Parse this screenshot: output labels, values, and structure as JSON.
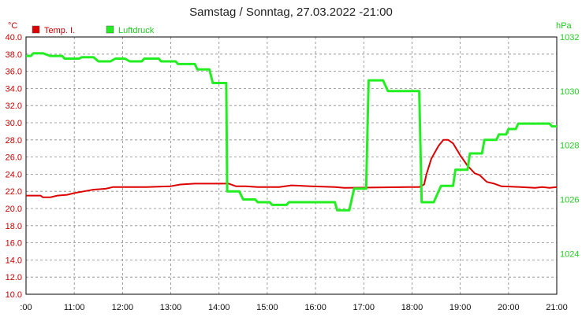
{
  "chart_data": {
    "type": "line",
    "title": "Samstag / Sonntag, 27.03.2022  -21:00",
    "x_ticks": [
      ":00",
      "11:00",
      "12:00",
      "13:00",
      "14:00",
      "15:00",
      "16:00",
      "17:00",
      "18:00",
      "19:00",
      "20:00",
      "21:00"
    ],
    "x_range": [
      10.0,
      21.0
    ],
    "grid": true,
    "legend_position": "top-left",
    "y_left": {
      "unit": "°C",
      "range": [
        10.0,
        40.0
      ],
      "ticks": [
        "40.0",
        "38.0",
        "36.0",
        "34.0",
        "32.0",
        "30.0",
        "28.0",
        "26.0",
        "24.0",
        "22.0",
        "20.0",
        "18.0",
        "16.0",
        "14.0",
        "12.0",
        "10.0"
      ],
      "color": "#cc0000"
    },
    "y_right": {
      "unit": "hPa",
      "range": [
        1022.5,
        1032.0
      ],
      "ticks": [
        "1032",
        "1030",
        "1028",
        "1026",
        "1024"
      ],
      "color": "#22cc22"
    },
    "series": [
      {
        "name": "Temp. I.",
        "axis": "left",
        "color": "#dd0000",
        "points": [
          [
            10.0,
            21.5
          ],
          [
            10.3,
            21.5
          ],
          [
            10.35,
            21.3
          ],
          [
            10.5,
            21.3
          ],
          [
            10.65,
            21.5
          ],
          [
            10.85,
            21.6
          ],
          [
            11.0,
            21.8
          ],
          [
            11.2,
            22.0
          ],
          [
            11.4,
            22.2
          ],
          [
            11.65,
            22.3
          ],
          [
            11.8,
            22.5
          ],
          [
            12.5,
            22.5
          ],
          [
            13.0,
            22.6
          ],
          [
            13.2,
            22.8
          ],
          [
            13.5,
            22.9
          ],
          [
            14.2,
            22.9
          ],
          [
            14.35,
            22.6
          ],
          [
            14.55,
            22.6
          ],
          [
            14.8,
            22.5
          ],
          [
            15.25,
            22.5
          ],
          [
            15.5,
            22.7
          ],
          [
            15.9,
            22.6
          ],
          [
            16.4,
            22.5
          ],
          [
            16.6,
            22.4
          ],
          [
            17.9,
            22.5
          ],
          [
            18.15,
            22.5
          ],
          [
            18.25,
            22.8
          ],
          [
            18.3,
            24.0
          ],
          [
            18.4,
            25.8
          ],
          [
            18.55,
            27.3
          ],
          [
            18.65,
            28.0
          ],
          [
            18.75,
            28.0
          ],
          [
            18.85,
            27.6
          ],
          [
            19.0,
            26.2
          ],
          [
            19.15,
            25.0
          ],
          [
            19.3,
            24.1
          ],
          [
            19.4,
            23.9
          ],
          [
            19.55,
            23.1
          ],
          [
            19.7,
            22.9
          ],
          [
            19.85,
            22.6
          ],
          [
            20.25,
            22.5
          ],
          [
            20.55,
            22.4
          ],
          [
            20.7,
            22.5
          ],
          [
            20.85,
            22.4
          ],
          [
            21.0,
            22.5
          ]
        ]
      },
      {
        "name": "Luftdruck",
        "axis": "right",
        "color": "#22ee22",
        "points": [
          [
            10.0,
            1031.3
          ],
          [
            10.1,
            1031.3
          ],
          [
            10.15,
            1031.4
          ],
          [
            10.35,
            1031.4
          ],
          [
            10.5,
            1031.3
          ],
          [
            10.75,
            1031.3
          ],
          [
            10.8,
            1031.2
          ],
          [
            11.1,
            1031.2
          ],
          [
            11.15,
            1031.25
          ],
          [
            11.4,
            1031.25
          ],
          [
            11.5,
            1031.1
          ],
          [
            11.75,
            1031.1
          ],
          [
            11.85,
            1031.2
          ],
          [
            12.05,
            1031.2
          ],
          [
            12.15,
            1031.1
          ],
          [
            12.4,
            1031.1
          ],
          [
            12.45,
            1031.2
          ],
          [
            12.75,
            1031.2
          ],
          [
            12.8,
            1031.1
          ],
          [
            13.1,
            1031.1
          ],
          [
            13.15,
            1031.0
          ],
          [
            13.5,
            1031.0
          ],
          [
            13.55,
            1030.8
          ],
          [
            13.8,
            1030.8
          ],
          [
            13.87,
            1030.3
          ],
          [
            14.15,
            1030.3
          ],
          [
            14.17,
            1026.3
          ],
          [
            14.42,
            1026.3
          ],
          [
            14.5,
            1026.0
          ],
          [
            14.75,
            1026.0
          ],
          [
            14.8,
            1025.9
          ],
          [
            15.05,
            1025.9
          ],
          [
            15.1,
            1025.8
          ],
          [
            15.4,
            1025.8
          ],
          [
            15.45,
            1025.9
          ],
          [
            16.4,
            1025.9
          ],
          [
            16.45,
            1025.6
          ],
          [
            16.7,
            1025.6
          ],
          [
            16.8,
            1026.4
          ],
          [
            17.05,
            1026.4
          ],
          [
            17.1,
            1030.4
          ],
          [
            17.4,
            1030.4
          ],
          [
            17.5,
            1030.0
          ],
          [
            18.15,
            1030.0
          ],
          [
            18.2,
            1025.9
          ],
          [
            18.45,
            1025.9
          ],
          [
            18.6,
            1026.5
          ],
          [
            18.85,
            1026.5
          ],
          [
            18.9,
            1027.1
          ],
          [
            19.15,
            1027.1
          ],
          [
            19.2,
            1027.7
          ],
          [
            19.45,
            1027.7
          ],
          [
            19.5,
            1028.2
          ],
          [
            19.75,
            1028.2
          ],
          [
            19.8,
            1028.4
          ],
          [
            19.95,
            1028.4
          ],
          [
            20.0,
            1028.6
          ],
          [
            20.15,
            1028.6
          ],
          [
            20.2,
            1028.8
          ],
          [
            20.85,
            1028.8
          ],
          [
            20.9,
            1028.7
          ],
          [
            21.0,
            1028.7
          ]
        ]
      }
    ]
  }
}
